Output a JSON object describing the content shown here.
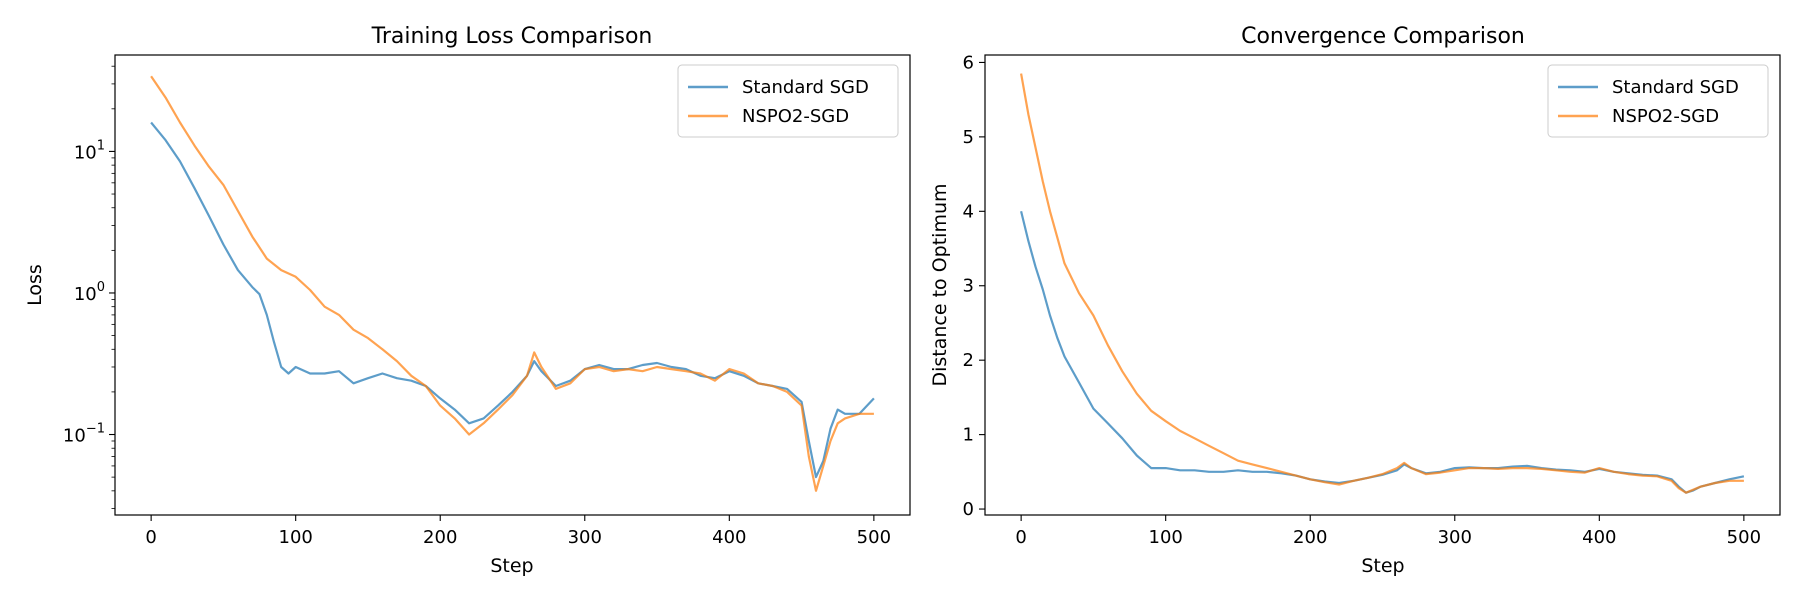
{
  "figure": {
    "background": "#ffffff"
  },
  "series_styles": [
    {
      "name": "Standard SGD",
      "color": "#1f77b4"
    },
    {
      "name": "NSPO2-SGD",
      "color": "#ff7f0e"
    }
  ],
  "chart_data": [
    {
      "type": "line",
      "title": "Training Loss Comparison",
      "xlabel": "Step",
      "ylabel": "Loss",
      "yscale": "log",
      "xlim": [
        -25,
        525
      ],
      "ylim": [
        0.027,
        48
      ],
      "xticks": [
        0,
        100,
        200,
        300,
        400,
        500
      ],
      "yticks": [
        {
          "value": 0.1,
          "base": "10",
          "exp": "−1"
        },
        {
          "value": 1,
          "base": "10",
          "exp": "0"
        },
        {
          "value": 10,
          "base": "10",
          "exp": "1"
        }
      ],
      "grid": false,
      "legend_position": "top-right",
      "series": [
        {
          "name": "Standard SGD",
          "points": [
            [
              0,
              16
            ],
            [
              10,
              12
            ],
            [
              20,
              8.5
            ],
            [
              30,
              5.5
            ],
            [
              40,
              3.5
            ],
            [
              50,
              2.2
            ],
            [
              60,
              1.45
            ],
            [
              70,
              1.1
            ],
            [
              75,
              0.98
            ],
            [
              80,
              0.7
            ],
            [
              85,
              0.45
            ],
            [
              90,
              0.3
            ],
            [
              95,
              0.27
            ],
            [
              100,
              0.3
            ],
            [
              110,
              0.27
            ],
            [
              120,
              0.27
            ],
            [
              130,
              0.28
            ],
            [
              140,
              0.23
            ],
            [
              150,
              0.25
            ],
            [
              160,
              0.27
            ],
            [
              170,
              0.25
            ],
            [
              180,
              0.24
            ],
            [
              190,
              0.22
            ],
            [
              200,
              0.18
            ],
            [
              210,
              0.15
            ],
            [
              220,
              0.12
            ],
            [
              230,
              0.13
            ],
            [
              240,
              0.16
            ],
            [
              250,
              0.2
            ],
            [
              260,
              0.26
            ],
            [
              265,
              0.33
            ],
            [
              270,
              0.28
            ],
            [
              280,
              0.22
            ],
            [
              290,
              0.24
            ],
            [
              300,
              0.29
            ],
            [
              310,
              0.31
            ],
            [
              320,
              0.29
            ],
            [
              330,
              0.29
            ],
            [
              340,
              0.31
            ],
            [
              350,
              0.32
            ],
            [
              360,
              0.3
            ],
            [
              370,
              0.29
            ],
            [
              380,
              0.26
            ],
            [
              390,
              0.25
            ],
            [
              400,
              0.28
            ],
            [
              410,
              0.26
            ],
            [
              420,
              0.23
            ],
            [
              430,
              0.22
            ],
            [
              440,
              0.21
            ],
            [
              450,
              0.17
            ],
            [
              455,
              0.09
            ],
            [
              460,
              0.05
            ],
            [
              465,
              0.065
            ],
            [
              470,
              0.11
            ],
            [
              475,
              0.15
            ],
            [
              480,
              0.14
            ],
            [
              490,
              0.14
            ],
            [
              500,
              0.18
            ]
          ]
        },
        {
          "name": "NSPO2-SGD",
          "points": [
            [
              0,
              34
            ],
            [
              10,
              24
            ],
            [
              20,
              16
            ],
            [
              30,
              11
            ],
            [
              40,
              7.8
            ],
            [
              50,
              5.8
            ],
            [
              60,
              3.8
            ],
            [
              70,
              2.5
            ],
            [
              80,
              1.75
            ],
            [
              90,
              1.45
            ],
            [
              100,
              1.3
            ],
            [
              110,
              1.05
            ],
            [
              120,
              0.8
            ],
            [
              130,
              0.7
            ],
            [
              140,
              0.55
            ],
            [
              150,
              0.48
            ],
            [
              160,
              0.4
            ],
            [
              170,
              0.33
            ],
            [
              180,
              0.26
            ],
            [
              190,
              0.22
            ],
            [
              200,
              0.16
            ],
            [
              210,
              0.13
            ],
            [
              220,
              0.1
            ],
            [
              230,
              0.12
            ],
            [
              240,
              0.15
            ],
            [
              250,
              0.19
            ],
            [
              260,
              0.26
            ],
            [
              265,
              0.38
            ],
            [
              270,
              0.3
            ],
            [
              280,
              0.21
            ],
            [
              290,
              0.23
            ],
            [
              300,
              0.29
            ],
            [
              310,
              0.3
            ],
            [
              320,
              0.28
            ],
            [
              330,
              0.29
            ],
            [
              340,
              0.28
            ],
            [
              350,
              0.3
            ],
            [
              360,
              0.29
            ],
            [
              370,
              0.28
            ],
            [
              380,
              0.27
            ],
            [
              390,
              0.24
            ],
            [
              400,
              0.29
            ],
            [
              410,
              0.27
            ],
            [
              420,
              0.23
            ],
            [
              430,
              0.22
            ],
            [
              440,
              0.2
            ],
            [
              450,
              0.16
            ],
            [
              455,
              0.07
            ],
            [
              460,
              0.04
            ],
            [
              465,
              0.06
            ],
            [
              470,
              0.09
            ],
            [
              475,
              0.12
            ],
            [
              480,
              0.13
            ],
            [
              490,
              0.14
            ],
            [
              500,
              0.14
            ]
          ]
        }
      ]
    },
    {
      "type": "line",
      "title": "Convergence Comparison",
      "xlabel": "Step",
      "ylabel": "Distance to Optimum",
      "yscale": "linear",
      "xlim": [
        -25,
        525
      ],
      "ylim": [
        -0.08,
        6.1
      ],
      "xticks": [
        0,
        100,
        200,
        300,
        400,
        500
      ],
      "yticks": [
        0,
        1,
        2,
        3,
        4,
        5,
        6
      ],
      "grid": false,
      "legend_position": "top-right",
      "series": [
        {
          "name": "Standard SGD",
          "points": [
            [
              0,
              4
            ],
            [
              5,
              3.6
            ],
            [
              10,
              3.25
            ],
            [
              15,
              2.95
            ],
            [
              20,
              2.6
            ],
            [
              25,
              2.3
            ],
            [
              30,
              2.05
            ],
            [
              40,
              1.7
            ],
            [
              50,
              1.35
            ],
            [
              60,
              1.15
            ],
            [
              70,
              0.95
            ],
            [
              80,
              0.72
            ],
            [
              90,
              0.55
            ],
            [
              100,
              0.55
            ],
            [
              110,
              0.52
            ],
            [
              120,
              0.52
            ],
            [
              130,
              0.5
            ],
            [
              140,
              0.5
            ],
            [
              150,
              0.52
            ],
            [
              160,
              0.5
            ],
            [
              170,
              0.5
            ],
            [
              180,
              0.48
            ],
            [
              190,
              0.45
            ],
            [
              200,
              0.4
            ],
            [
              210,
              0.37
            ],
            [
              220,
              0.35
            ],
            [
              230,
              0.38
            ],
            [
              240,
              0.42
            ],
            [
              250,
              0.46
            ],
            [
              260,
              0.52
            ],
            [
              265,
              0.6
            ],
            [
              270,
              0.55
            ],
            [
              280,
              0.48
            ],
            [
              290,
              0.5
            ],
            [
              300,
              0.55
            ],
            [
              310,
              0.56
            ],
            [
              320,
              0.55
            ],
            [
              330,
              0.55
            ],
            [
              340,
              0.57
            ],
            [
              350,
              0.58
            ],
            [
              360,
              0.55
            ],
            [
              370,
              0.53
            ],
            [
              380,
              0.52
            ],
            [
              390,
              0.5
            ],
            [
              400,
              0.54
            ],
            [
              410,
              0.5
            ],
            [
              420,
              0.48
            ],
            [
              430,
              0.46
            ],
            [
              440,
              0.45
            ],
            [
              450,
              0.4
            ],
            [
              455,
              0.3
            ],
            [
              460,
              0.22
            ],
            [
              465,
              0.25
            ],
            [
              470,
              0.3
            ],
            [
              480,
              0.35
            ],
            [
              490,
              0.4
            ],
            [
              500,
              0.44
            ]
          ]
        },
        {
          "name": "NSPO2-SGD",
          "points": [
            [
              0,
              5.85
            ],
            [
              5,
              5.3
            ],
            [
              10,
              4.85
            ],
            [
              15,
              4.4
            ],
            [
              20,
              4
            ],
            [
              25,
              3.65
            ],
            [
              30,
              3.3
            ],
            [
              40,
              2.9
            ],
            [
              50,
              2.6
            ],
            [
              60,
              2.2
            ],
            [
              70,
              1.85
            ],
            [
              80,
              1.55
            ],
            [
              90,
              1.32
            ],
            [
              100,
              1.18
            ],
            [
              110,
              1.05
            ],
            [
              120,
              0.95
            ],
            [
              130,
              0.85
            ],
            [
              140,
              0.75
            ],
            [
              150,
              0.65
            ],
            [
              160,
              0.6
            ],
            [
              170,
              0.55
            ],
            [
              180,
              0.5
            ],
            [
              190,
              0.45
            ],
            [
              200,
              0.4
            ],
            [
              210,
              0.36
            ],
            [
              220,
              0.33
            ],
            [
              230,
              0.38
            ],
            [
              240,
              0.42
            ],
            [
              250,
              0.47
            ],
            [
              260,
              0.55
            ],
            [
              265,
              0.62
            ],
            [
              270,
              0.55
            ],
            [
              280,
              0.47
            ],
            [
              290,
              0.49
            ],
            [
              300,
              0.52
            ],
            [
              310,
              0.55
            ],
            [
              320,
              0.55
            ],
            [
              330,
              0.54
            ],
            [
              340,
              0.55
            ],
            [
              350,
              0.55
            ],
            [
              360,
              0.54
            ],
            [
              370,
              0.52
            ],
            [
              380,
              0.5
            ],
            [
              390,
              0.49
            ],
            [
              400,
              0.55
            ],
            [
              410,
              0.5
            ],
            [
              420,
              0.47
            ],
            [
              430,
              0.45
            ],
            [
              440,
              0.44
            ],
            [
              450,
              0.38
            ],
            [
              455,
              0.28
            ],
            [
              460,
              0.22
            ],
            [
              465,
              0.26
            ],
            [
              470,
              0.3
            ],
            [
              480,
              0.35
            ],
            [
              490,
              0.38
            ],
            [
              500,
              0.38
            ]
          ]
        }
      ]
    }
  ]
}
